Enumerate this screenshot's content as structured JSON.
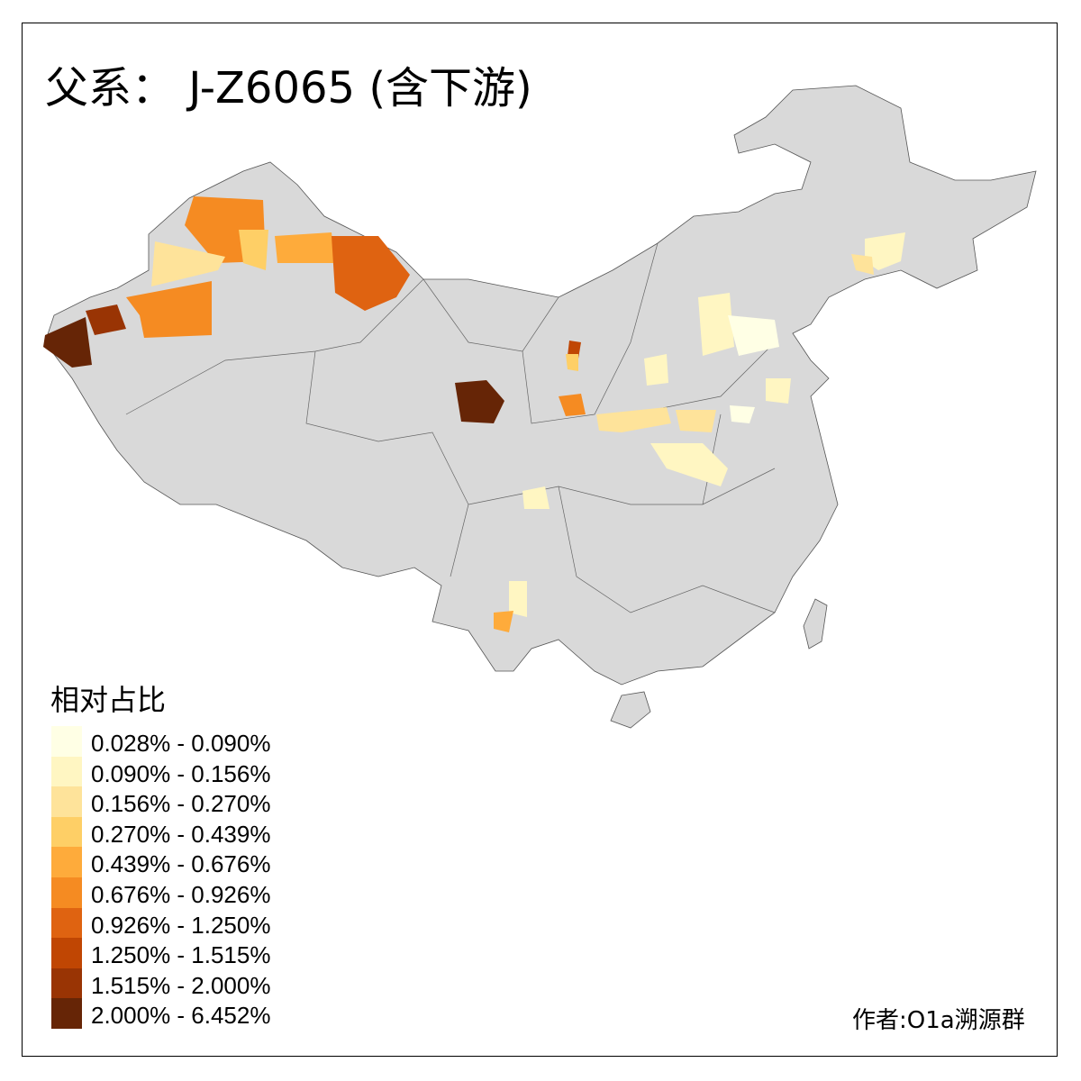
{
  "title": "父系： J-Z6065 (含下游)",
  "legend": {
    "title": "相对占比",
    "items": [
      {
        "label": "0.028% - 0.090%",
        "color": "#ffffe5"
      },
      {
        "label": "0.090% - 0.156%",
        "color": "#fff6c2"
      },
      {
        "label": "0.156% - 0.270%",
        "color": "#fee39a"
      },
      {
        "label": "0.270% - 0.439%",
        "color": "#fecf66"
      },
      {
        "label": "0.439% - 0.676%",
        "color": "#feab3b"
      },
      {
        "label": "0.676% - 0.926%",
        "color": "#f58b22"
      },
      {
        "label": "0.926% - 1.250%",
        "color": "#df6311"
      },
      {
        "label": "1.250% - 1.515%",
        "color": "#c04603"
      },
      {
        "label": "1.515% - 2.000%",
        "color": "#993404"
      },
      {
        "label": "2.000% - 6.452%",
        "color": "#662506"
      }
    ]
  },
  "base_color": "#d9d9d9",
  "author": "作者:O1a溯源群"
}
